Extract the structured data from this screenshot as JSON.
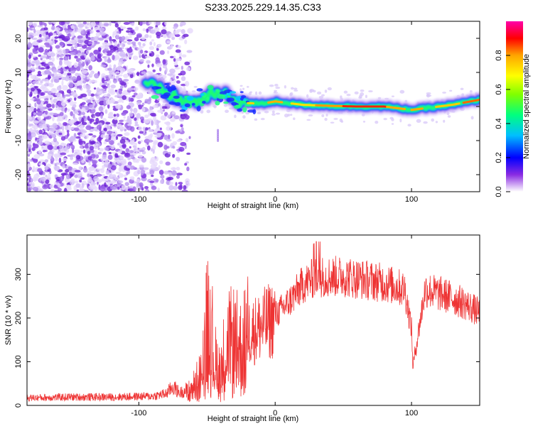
{
  "title": "S233.2025.229.14.35.C33",
  "chart_data": [
    {
      "type": "heatmap",
      "name": "spectrogram",
      "xlabel": "Height of straight line (km)",
      "ylabel": "Frequency (Hz)",
      "xlim": [
        -182,
        150
      ],
      "ylim": [
        -25,
        25
      ],
      "xticks": [
        -100,
        0,
        100
      ],
      "yticks": [
        -20,
        -10,
        0,
        10,
        20
      ],
      "ridge": [
        {
          "x": -90,
          "y": 6
        },
        {
          "x": -80,
          "y": 4
        },
        {
          "x": -70,
          "y": 2
        },
        {
          "x": -60,
          "y": 1
        },
        {
          "x": -50,
          "y": 3
        },
        {
          "x": -40,
          "y": 4
        },
        {
          "x": -30,
          "y": 2
        },
        {
          "x": -20,
          "y": 1
        },
        {
          "x": -10,
          "y": 0.8
        },
        {
          "x": 0,
          "y": 1.5
        },
        {
          "x": 10,
          "y": 1
        },
        {
          "x": 20,
          "y": 0.5
        },
        {
          "x": 40,
          "y": 0.2
        },
        {
          "x": 60,
          "y": 0
        },
        {
          "x": 80,
          "y": 0
        },
        {
          "x": 90,
          "y": -0.5
        },
        {
          "x": 100,
          "y": -1
        },
        {
          "x": 110,
          "y": -0.5
        },
        {
          "x": 130,
          "y": 0.5
        },
        {
          "x": 150,
          "y": 2
        }
      ],
      "colorbar": {
        "label": "Normalized spectral amplitude",
        "range": [
          0,
          1
        ],
        "ticks": [
          "0.0",
          "0.2",
          "0.4",
          "0.6",
          "0.8"
        ],
        "colors": [
          "#ffffff",
          "#8a2be2",
          "#0000ff",
          "#00bfff",
          "#00ff7f",
          "#7fff00",
          "#ffff00",
          "#ffa500",
          "#ff0000",
          "#ff00aa"
        ]
      }
    },
    {
      "type": "line",
      "name": "snr",
      "xlabel": "Height of straight line (km)",
      "ylabel": "SNR (10 * v/v)",
      "xlim": [
        -182,
        150
      ],
      "ylim": [
        0,
        390
      ],
      "xticks": [
        -100,
        0,
        100
      ],
      "yticks": [
        0,
        100,
        200,
        300
      ],
      "color": "#ee3333",
      "series": [
        {
          "name": "SNR",
          "x": [
            -182,
            -150,
            -120,
            -90,
            -80,
            -75,
            -70,
            -60,
            -55,
            -50,
            -48,
            -45,
            -40,
            -35,
            -30,
            -25,
            -20,
            -15,
            -10,
            -5,
            0,
            10,
            20,
            30,
            40,
            50,
            60,
            70,
            80,
            90,
            95,
            100,
            101,
            110,
            120,
            130,
            140,
            150
          ],
          "y": [
            18,
            20,
            20,
            22,
            28,
            45,
            30,
            45,
            70,
            200,
            260,
            110,
            95,
            150,
            160,
            140,
            175,
            180,
            190,
            200,
            210,
            240,
            280,
            300,
            300,
            300,
            295,
            290,
            285,
            275,
            270,
            180,
            90,
            270,
            260,
            250,
            235,
            215
          ]
        }
      ]
    }
  ]
}
